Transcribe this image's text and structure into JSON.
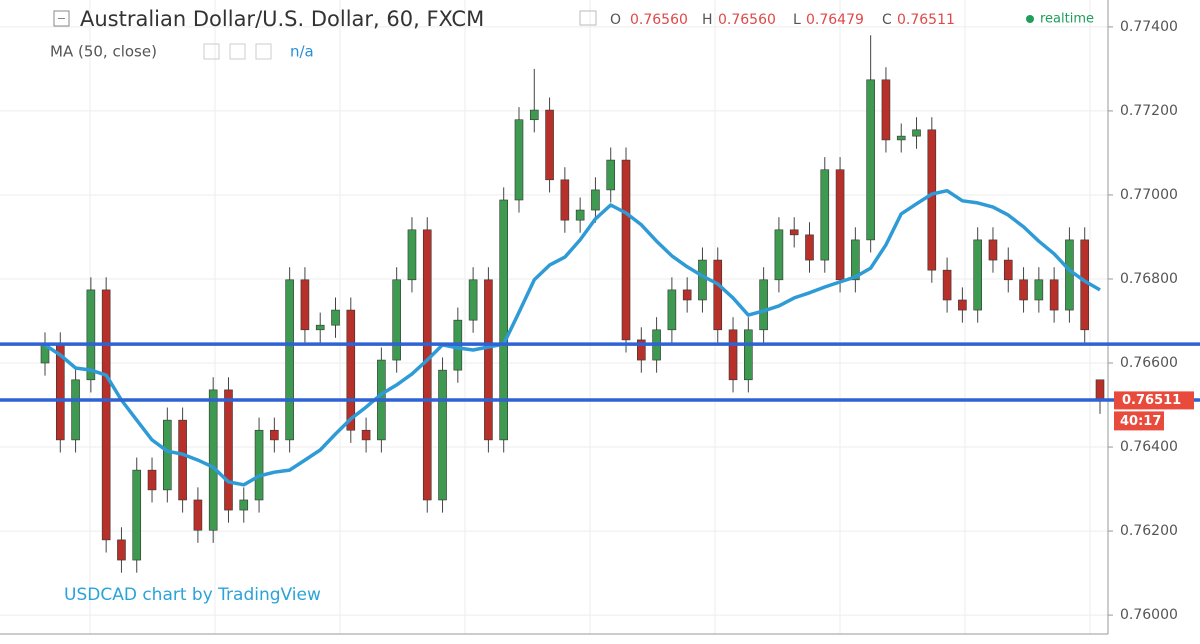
{
  "chart_data": {
    "type": "candlestick",
    "title": "Australian Dollar/U.S. Dollar, 60, FXCM",
    "ohlc_legend": [
      {
        "key": "O",
        "value": "0.76560"
      },
      {
        "key": "H",
        "value": "0.76560"
      },
      {
        "key": "L",
        "value": "0.76479"
      },
      {
        "key": "C",
        "value": "0.76511"
      }
    ],
    "status": "realtime",
    "indicator": "MA (50, close)",
    "indicator_value": "n/a",
    "watermark": "USDCAD chart by TradingView",
    "price_tag": "0.76511",
    "countdown": "40:17",
    "up_color": "#3d9a50",
    "down_color": "#b8302a",
    "open": [
      0.766,
      0.76643,
      0.76417,
      0.7656,
      0.76774,
      0.76179,
      0.76131,
      0.76345,
      0.76298,
      0.76464,
      0.76274,
      0.76202,
      0.76536,
      0.7625,
      0.76274,
      0.7644,
      0.76417,
      0.76798,
      0.76679,
      0.7669,
      0.76726,
      0.7644,
      0.76417,
      0.76607,
      0.76798,
      0.76917,
      0.76274,
      0.76583,
      0.76702,
      0.76798,
      0.76417,
      0.76988,
      0.77179,
      0.77202,
      0.77036,
      0.7694,
      0.76964,
      0.77012,
      0.77083,
      0.76655,
      0.76607,
      0.76679,
      0.76774,
      0.7675,
      0.76845,
      0.76679,
      0.7656,
      0.76679,
      0.76798,
      0.76917,
      0.76905,
      0.76845,
      0.7706,
      0.76798,
      0.76893,
      0.77274,
      0.77131,
      0.7714,
      0.77155,
      0.76821,
      0.7675,
      0.76726,
      0.76893,
      0.76845,
      0.76798,
      0.7675,
      0.76798,
      0.76726,
      0.76893,
      0.7656
    ],
    "high": [
      0.76673,
      0.76673,
      0.7659,
      0.76804,
      0.76804,
      0.76209,
      0.76375,
      0.76375,
      0.76494,
      0.76494,
      0.76304,
      0.76566,
      0.76566,
      0.76304,
      0.7647,
      0.7647,
      0.76828,
      0.76828,
      0.7672,
      0.76756,
      0.76756,
      0.7647,
      0.76637,
      0.76828,
      0.76947,
      0.76947,
      0.76613,
      0.76732,
      0.76828,
      0.76828,
      0.77018,
      0.77209,
      0.773,
      0.77232,
      0.77066,
      0.76994,
      0.77042,
      0.77113,
      0.77113,
      0.76685,
      0.76709,
      0.76804,
      0.76804,
      0.76875,
      0.76875,
      0.76709,
      0.76709,
      0.76828,
      0.76947,
      0.76947,
      0.76935,
      0.7709,
      0.7709,
      0.76923,
      0.7738,
      0.77304,
      0.7717,
      0.77185,
      0.77185,
      0.76851,
      0.7678,
      0.76923,
      0.76923,
      0.76875,
      0.76828,
      0.76828,
      0.76828,
      0.76923,
      0.76923,
      0.7656
    ],
    "low": [
      0.7657,
      0.76387,
      0.76387,
      0.7653,
      0.76149,
      0.76101,
      0.76101,
      0.76268,
      0.76268,
      0.76244,
      0.76172,
      0.76172,
      0.7622,
      0.7622,
      0.76244,
      0.76387,
      0.76387,
      0.76649,
      0.76649,
      0.7666,
      0.7641,
      0.76387,
      0.76387,
      0.76577,
      0.76768,
      0.76244,
      0.76244,
      0.76553,
      0.76672,
      0.76387,
      0.76387,
      0.76958,
      0.77149,
      0.77006,
      0.7691,
      0.7691,
      0.76934,
      0.76982,
      0.76625,
      0.76577,
      0.76577,
      0.76649,
      0.7672,
      0.7672,
      0.76649,
      0.7653,
      0.7653,
      0.76649,
      0.76768,
      0.76875,
      0.76815,
      0.76815,
      0.76768,
      0.76768,
      0.76863,
      0.77101,
      0.77101,
      0.7711,
      0.76791,
      0.7672,
      0.76696,
      0.76696,
      0.76815,
      0.76768,
      0.7672,
      0.7672,
      0.76696,
      0.76696,
      0.76649,
      0.76479
    ],
    "close": [
      0.76643,
      0.76417,
      0.7656,
      0.76774,
      0.76179,
      0.76131,
      0.76345,
      0.76298,
      0.76464,
      0.76274,
      0.76202,
      0.76536,
      0.7625,
      0.76274,
      0.7644,
      0.76417,
      0.76798,
      0.76679,
      0.7669,
      0.76726,
      0.7644,
      0.76417,
      0.76607,
      0.76798,
      0.76917,
      0.76274,
      0.76583,
      0.76702,
      0.76798,
      0.76417,
      0.76988,
      0.77179,
      0.77202,
      0.77036,
      0.7694,
      0.76964,
      0.77012,
      0.77083,
      0.76655,
      0.76607,
      0.76679,
      0.76774,
      0.7675,
      0.76845,
      0.76679,
      0.7656,
      0.76679,
      0.76798,
      0.76917,
      0.76905,
      0.76845,
      0.7706,
      0.76798,
      0.76893,
      0.77274,
      0.77131,
      0.7714,
      0.77155,
      0.76821,
      0.7675,
      0.76726,
      0.76893,
      0.76845,
      0.76798,
      0.7675,
      0.76798,
      0.76726,
      0.76893,
      0.76679,
      0.76511
    ],
    "ma": {
      "color": "#2e9bd6",
      "values": [
        0.76643,
        0.76619,
        0.76588,
        0.76583,
        0.76571,
        0.76512,
        0.76464,
        0.76417,
        0.7639,
        0.76383,
        0.76369,
        0.76352,
        0.76317,
        0.7631,
        0.76331,
        0.7634,
        0.76345,
        0.76369,
        0.76393,
        0.76431,
        0.76467,
        0.76495,
        0.76526,
        0.76548,
        0.76574,
        0.76607,
        0.76643,
        0.76636,
        0.76631,
        0.76638,
        0.76645,
        0.76721,
        0.76798,
        0.76833,
        0.76852,
        0.76893,
        0.76943,
        0.76976,
        0.76957,
        0.76929,
        0.7689,
        0.76855,
        0.76829,
        0.76807,
        0.76788,
        0.76755,
        0.76714,
        0.76724,
        0.76736,
        0.76755,
        0.76767,
        0.76781,
        0.76793,
        0.76805,
        0.76826,
        0.76881,
        0.76955,
        0.76979,
        0.77002,
        0.7701,
        0.76986,
        0.76981,
        0.76971,
        0.76952,
        0.76924,
        0.7689,
        0.7686,
        0.76821,
        0.76795,
        0.76774
      ]
    },
    "horizontal_lines": [
      {
        "value": 0.76645,
        "color": "#2f62d2"
      },
      {
        "value": 0.76512,
        "color": "#2f62d2"
      }
    ],
    "ylim": [
      0.75955,
      0.77464
    ],
    "yticks": [
      {
        "value": 0.76,
        "label": "0.76000"
      },
      {
        "value": 0.762,
        "label": "0.76200"
      },
      {
        "value": 0.764,
        "label": "0.76400"
      },
      {
        "value": 0.766,
        "label": "0.76600"
      },
      {
        "value": 0.768,
        "label": "0.76800"
      },
      {
        "value": 0.77,
        "label": "0.77000"
      },
      {
        "value": 0.772,
        "label": "0.77200"
      },
      {
        "value": 0.774,
        "label": "0.77400"
      }
    ],
    "grid": true
  }
}
